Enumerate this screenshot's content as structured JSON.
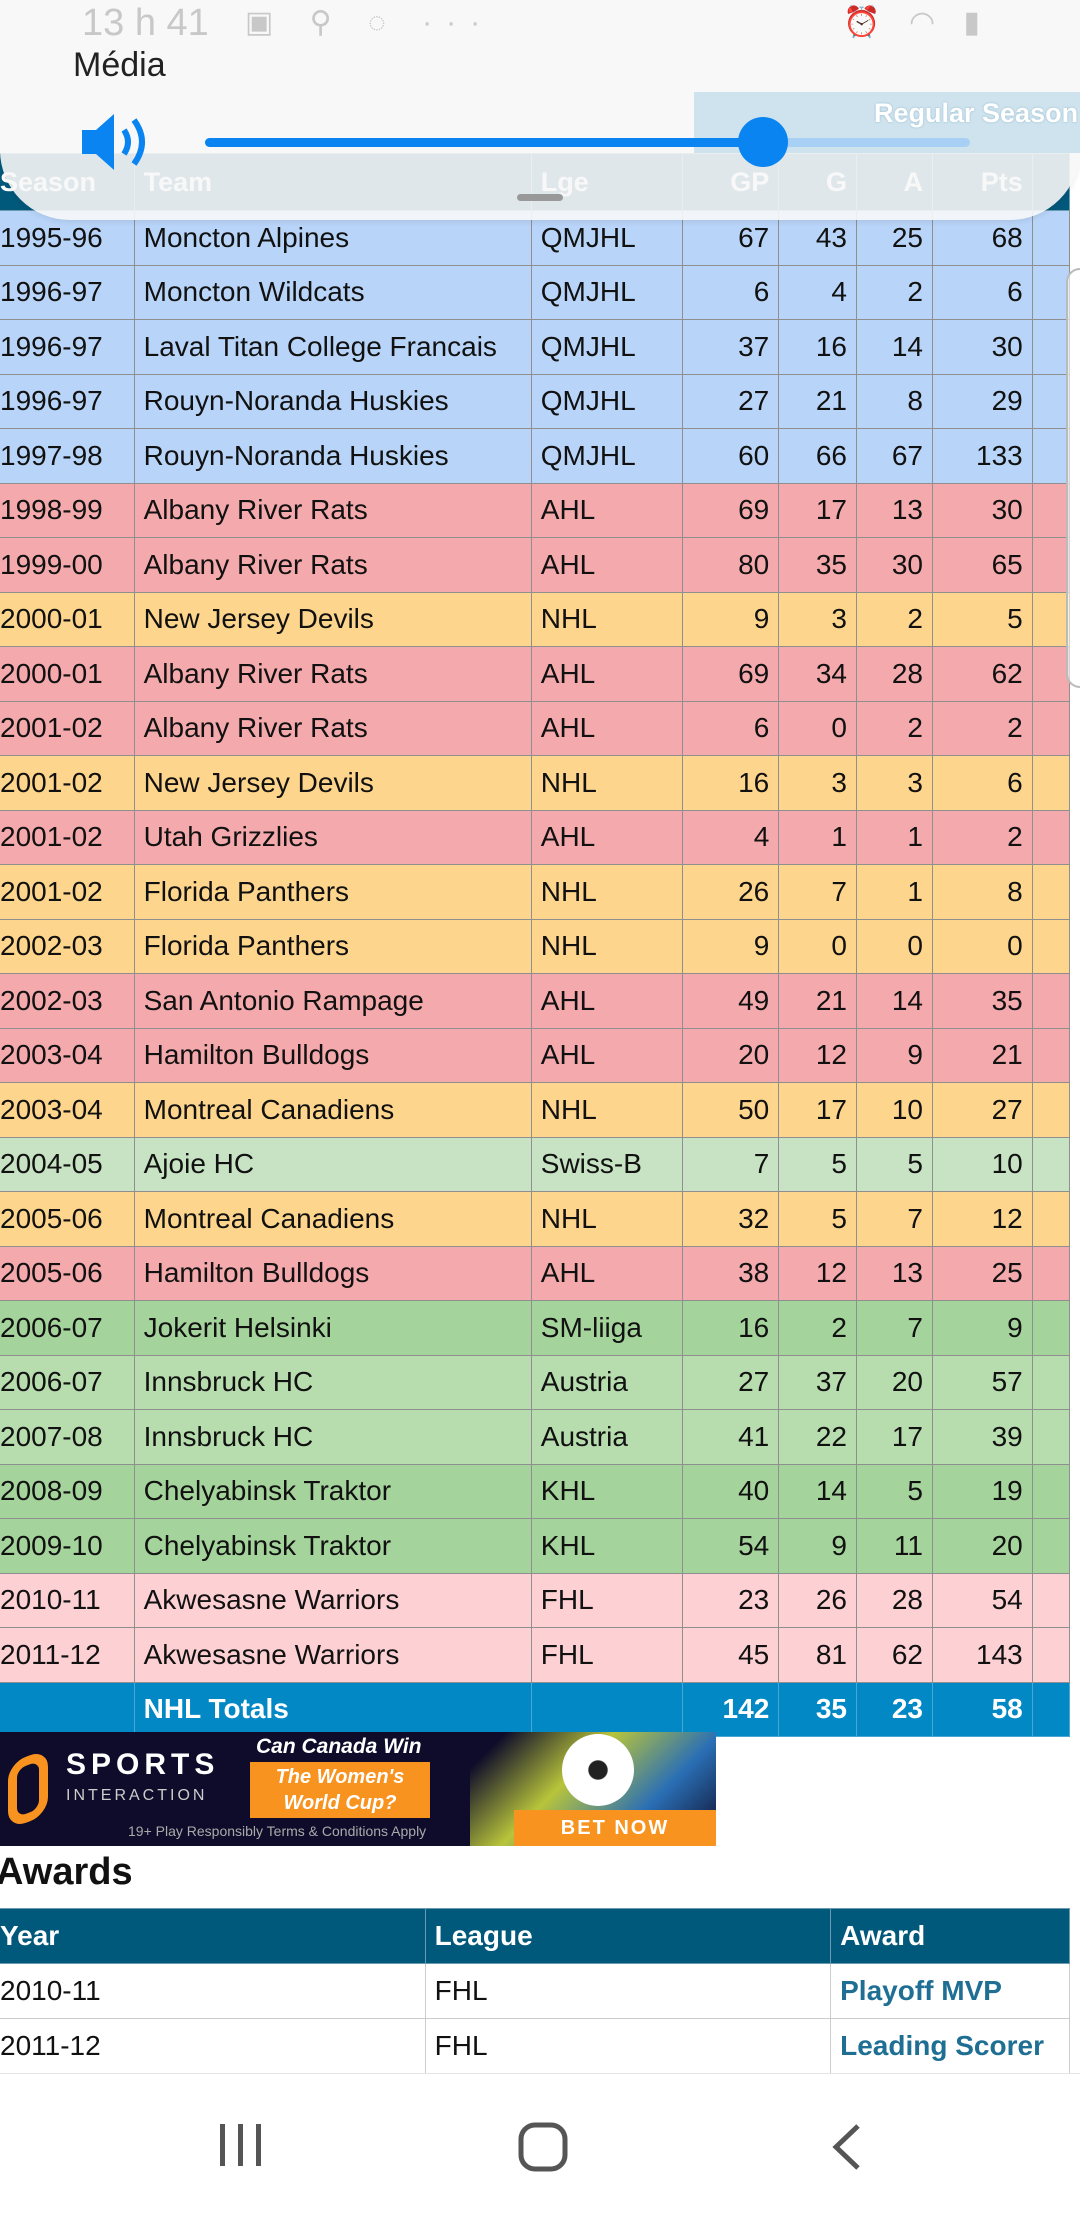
{
  "status_bar": {
    "time": "13 h 41"
  },
  "media_panel": {
    "label": "Média",
    "volume_percent": 73,
    "accent": "#0a84f0"
  },
  "stats": {
    "group_header": "Regular Season",
    "columns": [
      "Season",
      "Team",
      "Lge",
      "GP",
      "G",
      "A",
      "Pts"
    ],
    "league_colors": {
      "QMJHL": "#b8d4f8",
      "AHL": "#f4a9ac",
      "NHL": "#fed58c",
      "Swiss-B": "#c7e3c4",
      "SM-liiga": "#a5d39c",
      "Austria": "#b7dcae",
      "KHL": "#a5d39c",
      "FHL": "#fdd0d4"
    },
    "rows": [
      [
        "1995-96",
        "Moncton Alpines",
        "QMJHL",
        "67",
        "43",
        "25",
        "68"
      ],
      [
        "1996-97",
        "Moncton Wildcats",
        "QMJHL",
        "6",
        "4",
        "2",
        "6"
      ],
      [
        "1996-97",
        "Laval Titan College Francais",
        "QMJHL",
        "37",
        "16",
        "14",
        "30"
      ],
      [
        "1996-97",
        "Rouyn-Noranda Huskies",
        "QMJHL",
        "27",
        "21",
        "8",
        "29"
      ],
      [
        "1997-98",
        "Rouyn-Noranda Huskies",
        "QMJHL",
        "60",
        "66",
        "67",
        "133"
      ],
      [
        "1998-99",
        "Albany River Rats",
        "AHL",
        "69",
        "17",
        "13",
        "30"
      ],
      [
        "1999-00",
        "Albany River Rats",
        "AHL",
        "80",
        "35",
        "30",
        "65"
      ],
      [
        "2000-01",
        "New Jersey Devils",
        "NHL",
        "9",
        "3",
        "2",
        "5"
      ],
      [
        "2000-01",
        "Albany River Rats",
        "AHL",
        "69",
        "34",
        "28",
        "62"
      ],
      [
        "2001-02",
        "Albany River Rats",
        "AHL",
        "6",
        "0",
        "2",
        "2"
      ],
      [
        "2001-02",
        "New Jersey Devils",
        "NHL",
        "16",
        "3",
        "3",
        "6"
      ],
      [
        "2001-02",
        "Utah Grizzlies",
        "AHL",
        "4",
        "1",
        "1",
        "2"
      ],
      [
        "2001-02",
        "Florida Panthers",
        "NHL",
        "26",
        "7",
        "1",
        "8"
      ],
      [
        "2002-03",
        "Florida Panthers",
        "NHL",
        "9",
        "0",
        "0",
        "0"
      ],
      [
        "2002-03",
        "San Antonio Rampage",
        "AHL",
        "49",
        "21",
        "14",
        "35"
      ],
      [
        "2003-04",
        "Hamilton Bulldogs",
        "AHL",
        "20",
        "12",
        "9",
        "21"
      ],
      [
        "2003-04",
        "Montreal Canadiens",
        "NHL",
        "50",
        "17",
        "10",
        "27"
      ],
      [
        "2004-05",
        "Ajoie HC",
        "Swiss-B",
        "7",
        "5",
        "5",
        "10"
      ],
      [
        "2005-06",
        "Montreal Canadiens",
        "NHL",
        "32",
        "5",
        "7",
        "12"
      ],
      [
        "2005-06",
        "Hamilton Bulldogs",
        "AHL",
        "38",
        "12",
        "13",
        "25"
      ],
      [
        "2006-07",
        "Jokerit Helsinki",
        "SM-liiga",
        "16",
        "2",
        "7",
        "9"
      ],
      [
        "2006-07",
        "Innsbruck HC",
        "Austria",
        "27",
        "37",
        "20",
        "57"
      ],
      [
        "2007-08",
        "Innsbruck HC",
        "Austria",
        "41",
        "22",
        "17",
        "39"
      ],
      [
        "2008-09",
        "Chelyabinsk Traktor",
        "KHL",
        "40",
        "14",
        "5",
        "19"
      ],
      [
        "2009-10",
        "Chelyabinsk Traktor",
        "KHL",
        "54",
        "9",
        "11",
        "20"
      ],
      [
        "2010-11",
        "Akwesasne Warriors",
        "FHL",
        "23",
        "26",
        "28",
        "54"
      ],
      [
        "2011-12",
        "Akwesasne Warriors",
        "FHL",
        "45",
        "81",
        "62",
        "143"
      ]
    ],
    "totals": [
      "",
      "NHL Totals",
      "",
      "142",
      "35",
      "23",
      "58"
    ]
  },
  "ad": {
    "brand": "SPORTS",
    "brand_sub": "INTERACTION",
    "question": "Can Canada Win",
    "headline": "The Women's World Cup?",
    "cta": "BET NOW",
    "fine_print": "19+ Play Responsibly  Terms & Conditions Apply"
  },
  "awards": {
    "title": "Awards",
    "columns": [
      "Year",
      "League",
      "Award"
    ],
    "rows": [
      [
        "2010-11",
        "FHL",
        "Playoff MVP"
      ],
      [
        "2011-12",
        "FHL",
        "Leading Scorer"
      ]
    ]
  }
}
